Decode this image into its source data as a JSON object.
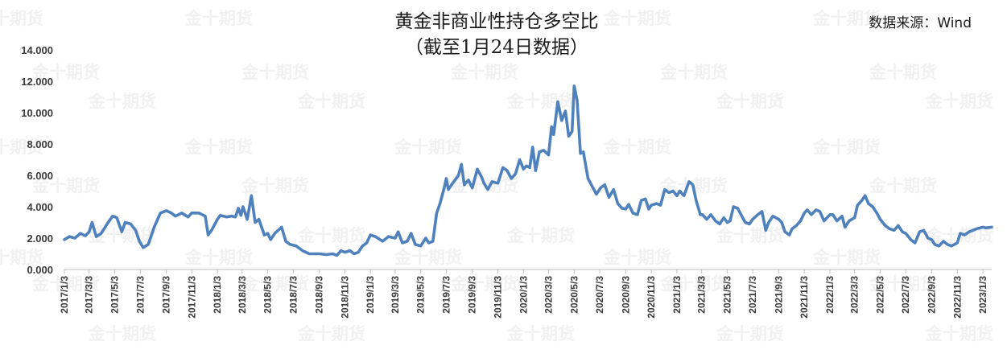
{
  "chart_data": {
    "type": "line",
    "title": [
      "黄金非商业性持仓多空比",
      "（截至1月24日数据）"
    ],
    "source": "数据来源：Wind",
    "watermark": "金十期货",
    "ylim": [
      0,
      14
    ],
    "yticks": [
      "0.000",
      "2.000",
      "4.000",
      "6.000",
      "8.000",
      "10.000",
      "12.000",
      "14.000"
    ],
    "xticks": [
      "2017/1/3",
      "2017/3/3",
      "2017/5/3",
      "2017/7/3",
      "2017/9/3",
      "2017/11/3",
      "2018/1/3",
      "2018/3/3",
      "2018/5/3",
      "2018/7/3",
      "2018/9/3",
      "2018/11/3",
      "2019/1/3",
      "2019/3/3",
      "2019/5/3",
      "2019/7/3",
      "2019/9/3",
      "2019/11/3",
      "2020/1/3",
      "2020/3/3",
      "2020/5/3",
      "2020/7/3",
      "2020/9/3",
      "2020/11/3",
      "2021/1/3",
      "2021/3/3",
      "2021/5/3",
      "2021/7/3",
      "2021/9/3",
      "2021/11/3",
      "2022/1/3",
      "2022/3/3",
      "2022/5/3",
      "2022/7/3",
      "2022/9/3",
      "2022/11/3",
      "2023/1/3"
    ],
    "grid": false,
    "line_color": "#4f81bd",
    "series": [
      {
        "points": [
          [
            "2017/01/03",
            1.9
          ],
          [
            "2017/01/15",
            2.1
          ],
          [
            "2017/01/28",
            2.0
          ],
          [
            "2017/02/10",
            2.3
          ],
          [
            "2017/02/22",
            2.15
          ],
          [
            "2017/03/03",
            2.4
          ],
          [
            "2017/03/10",
            3.0
          ],
          [
            "2017/03/20",
            2.1
          ],
          [
            "2017/04/01",
            2.3
          ],
          [
            "2017/04/15",
            2.9
          ],
          [
            "2017/04/28",
            3.4
          ],
          [
            "2017/05/08",
            3.3
          ],
          [
            "2017/05/20",
            2.4
          ],
          [
            "2017/05/28",
            3.0
          ],
          [
            "2017/06/10",
            2.9
          ],
          [
            "2017/06/22",
            2.5
          ],
          [
            "2017/07/01",
            1.8
          ],
          [
            "2017/07/10",
            1.4
          ],
          [
            "2017/07/22",
            1.6
          ],
          [
            "2017/08/05",
            2.7
          ],
          [
            "2017/08/20",
            3.6
          ],
          [
            "2017/09/03",
            3.75
          ],
          [
            "2017/09/15",
            3.6
          ],
          [
            "2017/09/25",
            3.4
          ],
          [
            "2017/10/10",
            3.6
          ],
          [
            "2017/10/25",
            3.35
          ],
          [
            "2017/11/03",
            3.6
          ],
          [
            "2017/11/20",
            3.6
          ],
          [
            "2017/12/05",
            3.4
          ],
          [
            "2017/12/12",
            2.2
          ],
          [
            "2017/12/20",
            2.5
          ],
          [
            "2018/01/03",
            3.2
          ],
          [
            "2018/01/10",
            3.45
          ],
          [
            "2018/01/25",
            3.35
          ],
          [
            "2018/02/05",
            3.4
          ],
          [
            "2018/02/15",
            3.35
          ],
          [
            "2018/02/22",
            3.9
          ],
          [
            "2018/02/28",
            3.45
          ],
          [
            "2018/03/05",
            4.0
          ],
          [
            "2018/03/15",
            3.2
          ],
          [
            "2018/03/25",
            4.7
          ],
          [
            "2018/04/03",
            3.0
          ],
          [
            "2018/04/12",
            3.2
          ],
          [
            "2018/04/25",
            2.2
          ],
          [
            "2018/05/03",
            2.3
          ],
          [
            "2018/05/10",
            1.9
          ],
          [
            "2018/05/20",
            2.3
          ],
          [
            "2018/06/05",
            2.7
          ],
          [
            "2018/06/15",
            1.8
          ],
          [
            "2018/06/25",
            1.6
          ],
          [
            "2018/07/10",
            1.5
          ],
          [
            "2018/07/25",
            1.2
          ],
          [
            "2018/08/10",
            1.0
          ],
          [
            "2018/09/03",
            1.0
          ],
          [
            "2018/09/20",
            0.95
          ],
          [
            "2018/10/05",
            1.0
          ],
          [
            "2018/10/15",
            0.9
          ],
          [
            "2018/10/25",
            1.2
          ],
          [
            "2018/11/03",
            1.1
          ],
          [
            "2018/11/15",
            1.2
          ],
          [
            "2018/11/25",
            1.0
          ],
          [
            "2018/12/05",
            1.1
          ],
          [
            "2018/12/15",
            1.5
          ],
          [
            "2018/12/25",
            1.7
          ],
          [
            "2019/01/03",
            2.2
          ],
          [
            "2019/01/15",
            2.1
          ],
          [
            "2019/02/01",
            1.8
          ],
          [
            "2019/02/15",
            2.1
          ],
          [
            "2019/03/03",
            2.0
          ],
          [
            "2019/03/10",
            2.4
          ],
          [
            "2019/03/20",
            1.7
          ],
          [
            "2019/04/01",
            1.8
          ],
          [
            "2019/04/10",
            2.3
          ],
          [
            "2019/04/20",
            1.6
          ],
          [
            "2019/05/03",
            1.5
          ],
          [
            "2019/05/15",
            2.0
          ],
          [
            "2019/05/22",
            1.7
          ],
          [
            "2019/06/01",
            1.8
          ],
          [
            "2019/06/10",
            3.6
          ],
          [
            "2019/06/18",
            4.2
          ],
          [
            "2019/06/28",
            5.2
          ],
          [
            "2019/07/03",
            5.8
          ],
          [
            "2019/07/08",
            5.1
          ],
          [
            "2019/07/18",
            5.5
          ],
          [
            "2019/08/01",
            6.0
          ],
          [
            "2019/08/08",
            6.7
          ],
          [
            "2019/08/15",
            5.4
          ],
          [
            "2019/08/25",
            5.7
          ],
          [
            "2019/09/03",
            5.2
          ],
          [
            "2019/09/15",
            6.4
          ],
          [
            "2019/09/25",
            5.9
          ],
          [
            "2019/10/01",
            5.5
          ],
          [
            "2019/10/10",
            5.1
          ],
          [
            "2019/10/20",
            5.6
          ],
          [
            "2019/11/03",
            5.5
          ],
          [
            "2019/11/15",
            6.5
          ],
          [
            "2019/11/25",
            6.3
          ],
          [
            "2019/12/05",
            5.8
          ],
          [
            "2019/12/15",
            6.1
          ],
          [
            "2019/12/25",
            7.0
          ],
          [
            "2020/01/03",
            6.4
          ],
          [
            "2020/01/10",
            6.6
          ],
          [
            "2020/01/18",
            6.5
          ],
          [
            "2020/01/25",
            7.8
          ],
          [
            "2020/02/01",
            6.3
          ],
          [
            "2020/02/10",
            7.5
          ],
          [
            "2020/02/20",
            7.6
          ],
          [
            "2020/03/03",
            7.3
          ],
          [
            "2020/03/10",
            9.1
          ],
          [
            "2020/03/15",
            8.6
          ],
          [
            "2020/03/25",
            10.7
          ],
          [
            "2020/04/03",
            9.5
          ],
          [
            "2020/04/12",
            10.1
          ],
          [
            "2020/04/20",
            8.5
          ],
          [
            "2020/04/28",
            8.8
          ],
          [
            "2020/05/03",
            11.7
          ],
          [
            "2020/05/10",
            10.8
          ],
          [
            "2020/05/18",
            7.4
          ],
          [
            "2020/05/25",
            7.5
          ],
          [
            "2020/06/05",
            5.8
          ],
          [
            "2020/06/15",
            5.3
          ],
          [
            "2020/06/25",
            4.8
          ],
          [
            "2020/07/05",
            5.2
          ],
          [
            "2020/07/15",
            5.4
          ],
          [
            "2020/07/25",
            4.6
          ],
          [
            "2020/08/05",
            5.1
          ],
          [
            "2020/08/15",
            4.2
          ],
          [
            "2020/08/25",
            3.9
          ],
          [
            "2020/09/03",
            3.85
          ],
          [
            "2020/09/10",
            4.15
          ],
          [
            "2020/09/20",
            3.6
          ],
          [
            "2020/10/01",
            3.5
          ],
          [
            "2020/10/10",
            4.4
          ],
          [
            "2020/10/20",
            4.5
          ],
          [
            "2020/10/28",
            3.85
          ],
          [
            "2020/11/03",
            4.1
          ],
          [
            "2020/11/15",
            4.2
          ],
          [
            "2020/11/25",
            4.1
          ],
          [
            "2020/12/05",
            5.1
          ],
          [
            "2020/12/15",
            4.9
          ],
          [
            "2020/12/25",
            5.0
          ],
          [
            "2021/01/03",
            4.7
          ],
          [
            "2021/01/10",
            5.0
          ],
          [
            "2021/01/20",
            4.7
          ],
          [
            "2021/02/01",
            5.6
          ],
          [
            "2021/02/10",
            5.4
          ],
          [
            "2021/02/18",
            4.4
          ],
          [
            "2021/02/28",
            3.5
          ],
          [
            "2021/03/05",
            3.5
          ],
          [
            "2021/03/15",
            3.2
          ],
          [
            "2021/03/25",
            3.5
          ],
          [
            "2021/04/05",
            3.1
          ],
          [
            "2021/04/15",
            2.9
          ],
          [
            "2021/04/25",
            3.3
          ],
          [
            "2021/05/03",
            3.0
          ],
          [
            "2021/05/10",
            3.1
          ],
          [
            "2021/05/18",
            4.0
          ],
          [
            "2021/05/28",
            3.9
          ],
          [
            "2021/06/05",
            3.5
          ],
          [
            "2021/06/15",
            3.0
          ],
          [
            "2021/06/25",
            2.9
          ],
          [
            "2021/07/03",
            3.2
          ],
          [
            "2021/07/15",
            3.5
          ],
          [
            "2021/07/25",
            3.7
          ],
          [
            "2021/08/03",
            2.5
          ],
          [
            "2021/08/10",
            3.0
          ],
          [
            "2021/08/20",
            3.4
          ],
          [
            "2021/09/03",
            3.2
          ],
          [
            "2021/09/10",
            3.0
          ],
          [
            "2021/09/18",
            2.4
          ],
          [
            "2021/09/28",
            2.2
          ],
          [
            "2021/10/05",
            2.6
          ],
          [
            "2021/10/15",
            2.8
          ],
          [
            "2021/10/25",
            3.1
          ],
          [
            "2021/11/03",
            3.6
          ],
          [
            "2021/11/10",
            3.8
          ],
          [
            "2021/11/20",
            3.5
          ],
          [
            "2021/12/01",
            3.8
          ],
          [
            "2021/12/10",
            3.7
          ],
          [
            "2021/12/20",
            3.1
          ],
          [
            "2022/01/03",
            3.5
          ],
          [
            "2022/01/10",
            3.5
          ],
          [
            "2022/01/20",
            3.1
          ],
          [
            "2022/02/01",
            3.4
          ],
          [
            "2022/02/08",
            2.7
          ],
          [
            "2022/02/18",
            3.1
          ],
          [
            "2022/03/03",
            3.3
          ],
          [
            "2022/03/10",
            4.1
          ],
          [
            "2022/03/20",
            4.4
          ],
          [
            "2022/03/28",
            4.7
          ],
          [
            "2022/04/05",
            4.2
          ],
          [
            "2022/04/15",
            4.0
          ],
          [
            "2022/04/25",
            3.6
          ],
          [
            "2022/05/03",
            3.2
          ],
          [
            "2022/05/15",
            2.8
          ],
          [
            "2022/05/25",
            2.6
          ],
          [
            "2022/06/05",
            2.5
          ],
          [
            "2022/06/15",
            2.8
          ],
          [
            "2022/06/25",
            2.4
          ],
          [
            "2022/07/03",
            2.3
          ],
          [
            "2022/07/15",
            1.9
          ],
          [
            "2022/07/25",
            1.7
          ],
          [
            "2022/08/05",
            2.4
          ],
          [
            "2022/08/15",
            2.5
          ],
          [
            "2022/08/25",
            2.0
          ],
          [
            "2022/09/03",
            1.9
          ],
          [
            "2022/09/10",
            1.6
          ],
          [
            "2022/09/20",
            1.5
          ],
          [
            "2022/10/01",
            1.8
          ],
          [
            "2022/10/10",
            1.6
          ],
          [
            "2022/10/20",
            1.5
          ],
          [
            "2022/11/03",
            1.7
          ],
          [
            "2022/11/10",
            2.3
          ],
          [
            "2022/11/20",
            2.2
          ],
          [
            "2022/12/01",
            2.4
          ],
          [
            "2022/12/10",
            2.5
          ],
          [
            "2022/12/20",
            2.6
          ],
          [
            "2023/01/03",
            2.7
          ],
          [
            "2023/01/10",
            2.65
          ],
          [
            "2023/01/24",
            2.7
          ]
        ]
      }
    ]
  }
}
